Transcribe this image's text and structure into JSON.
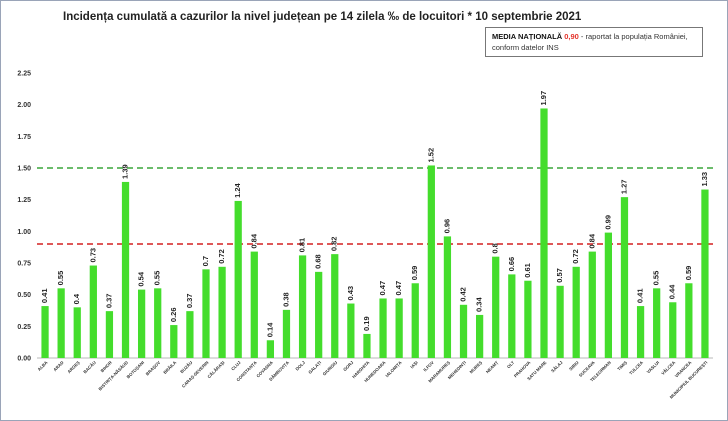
{
  "chart_data": {
    "type": "bar",
    "title": "Incidența cumulată a cazurilor la nivel județean pe 14 zilela ‰ de locuitori * 10 septembrie 2021",
    "annotation": {
      "highlight": "MEDIA NAȚIONALĂ",
      "value": "0,90",
      "text_line1": " - raportat la populația României,",
      "text_line2": "conform datelor INS"
    },
    "categories": [
      "ALBA",
      "ARAD",
      "ARGEȘ",
      "BACĂU",
      "BIHOR",
      "BISTRIȚA-NĂSĂUD",
      "BOTOȘANI",
      "BRAȘOV",
      "BRĂILA",
      "BUZĂU",
      "CARAȘ-SEVERIN",
      "CĂLĂRAȘI",
      "CLUJ",
      "CONSTANȚA",
      "COVASNA",
      "DÂMBOVIȚA",
      "DOLJ",
      "GALAȚI",
      "GIURGIU",
      "GORJ",
      "HARGHITA",
      "HUNEDOARA",
      "IALOMIȚA",
      "IAȘI",
      "ILFOV",
      "MARAMUREȘ",
      "MEHEDINȚI",
      "MUREȘ",
      "NEAMȚ",
      "OLT",
      "PRAHOVA",
      "SATU MARE",
      "SĂLAJ",
      "SIBIU",
      "SUCEAVA",
      "TELEORMAN",
      "TIMIȘ",
      "TULCEA",
      "VASLUI",
      "VÂLCEA",
      "VRANCEA",
      "MUNICIPIUL BUCUREȘTI"
    ],
    "values": [
      0.41,
      0.55,
      0.4,
      0.73,
      0.37,
      1.39,
      0.54,
      0.55,
      0.26,
      0.37,
      0.7,
      0.72,
      1.24,
      0.84,
      0.14,
      0.38,
      0.81,
      0.68,
      0.82,
      0.43,
      0.19,
      0.47,
      0.47,
      0.59,
      1.52,
      0.96,
      0.42,
      0.34,
      0.8,
      0.66,
      0.61,
      1.97,
      0.57,
      0.72,
      0.84,
      0.99,
      1.27,
      0.41,
      0.55,
      0.44,
      0.59,
      1.33
    ],
    "value_labels": [
      "0.41",
      "0.55",
      "0.4",
      "0.73",
      "0.37",
      "1.39",
      "0.54",
      "0.55",
      "0.26",
      "0.37",
      "0.7",
      "0.72",
      "1.24",
      "0.84",
      "0.14",
      "0.38",
      "0.81",
      "0.68",
      "0.82",
      "0.43",
      "0.19",
      "0.47",
      "0.47",
      "0.59",
      "1.52",
      "0.96",
      "0.42",
      "0.34",
      "0.8",
      "0.66",
      "0.61",
      "1.97",
      "0.57",
      "0.72",
      "0.84",
      "0.99",
      "1.27",
      "0.41",
      "0.55",
      "0.44",
      "0.59",
      "1.33"
    ],
    "yticks": [
      "0.00",
      "0.25",
      "0.50",
      "0.75",
      "1.00",
      "1.25",
      "1.50",
      "1.75",
      "2.00",
      "2.25"
    ],
    "ylim": [
      0,
      2.25
    ],
    "reference_lines": [
      {
        "value": 1.5,
        "color": "#3aa63a",
        "style": "dashed"
      },
      {
        "value": 0.9,
        "color": "#d42020",
        "style": "dashed"
      }
    ],
    "bar_color": "#44dd2c",
    "grid": false,
    "xlabel": "",
    "ylabel": ""
  }
}
